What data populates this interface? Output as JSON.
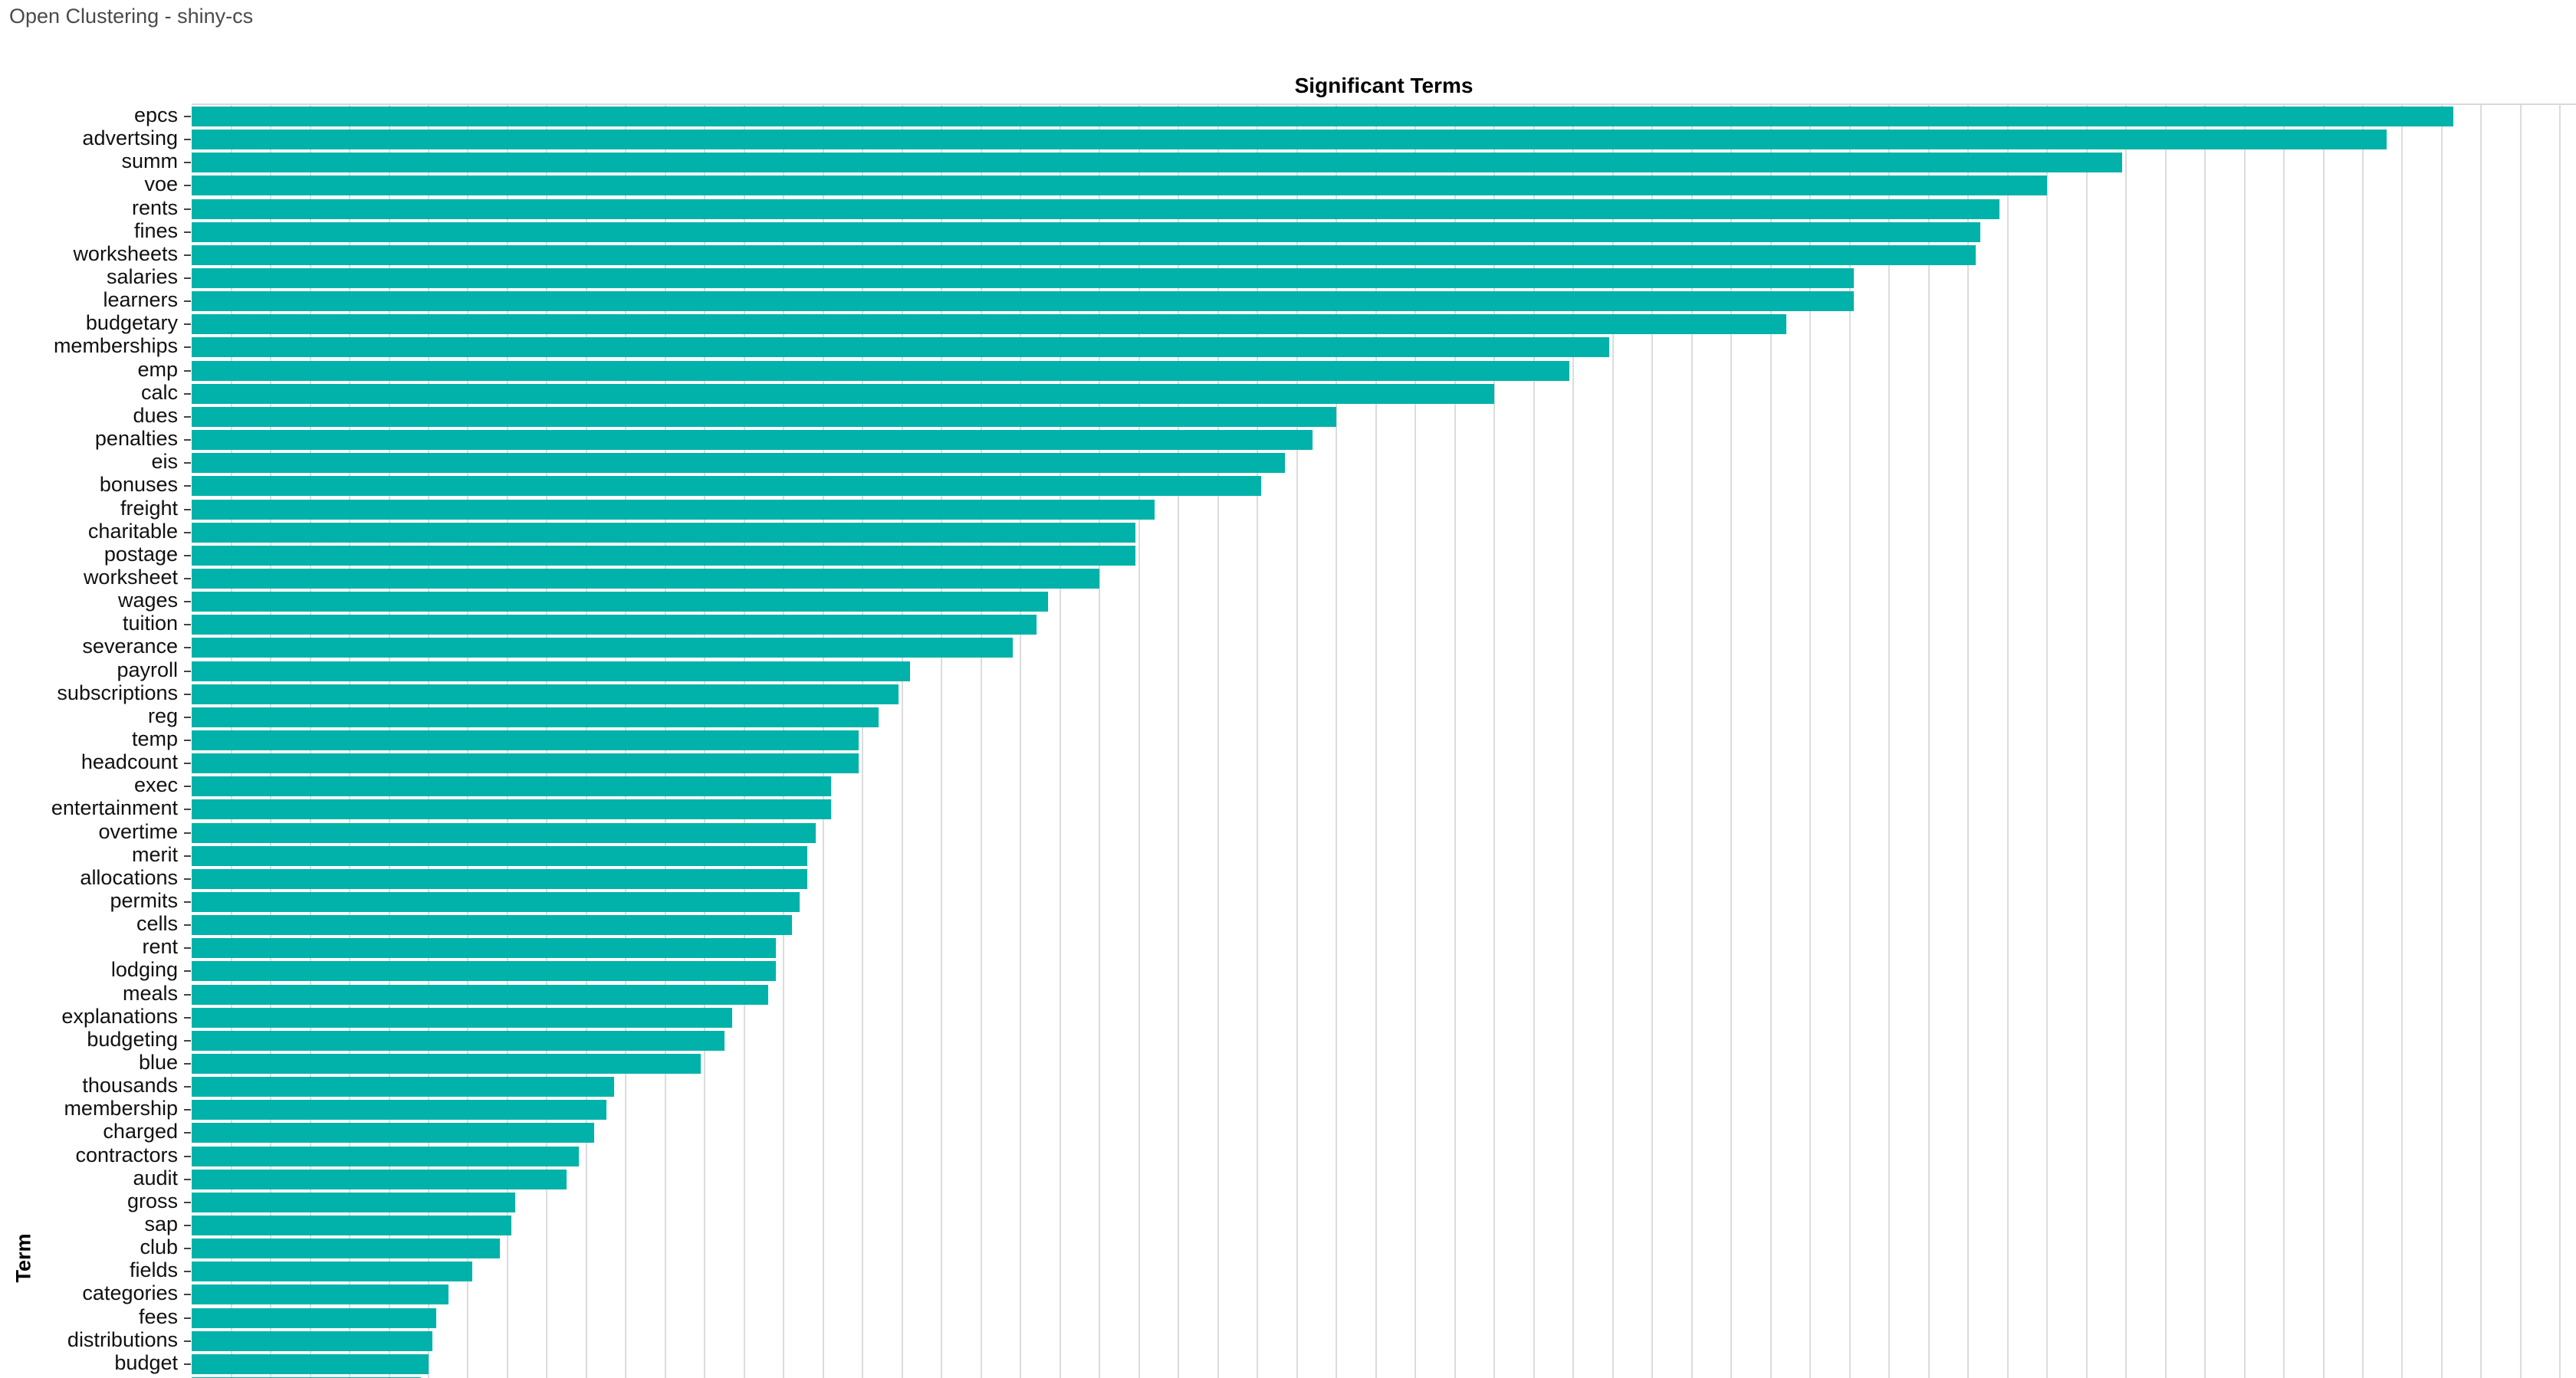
{
  "header": {
    "title": "Open Clustering - shiny-cs"
  },
  "chart_data": {
    "type": "bar",
    "orientation": "horizontal",
    "title": "Significant Terms",
    "xlabel": "",
    "ylabel": "Term",
    "legend": "none",
    "grid": "vertical-only",
    "x_axis_tick_labels_visible": false,
    "xlim": [
      0,
      60.4
    ],
    "bar_color": "#00b2a9",
    "gridline_color": "#dcdcdc",
    "categories": [
      "epcs",
      "advertsing",
      "summ",
      "voe",
      "rents",
      "fines",
      "worksheets",
      "salaries",
      "learners",
      "budgetary",
      "memberships",
      "emp",
      "calc",
      "dues",
      "penalties",
      "eis",
      "bonuses",
      "freight",
      "charitable",
      "postage",
      "worksheet",
      "wages",
      "tuition",
      "severance",
      "payroll",
      "subscriptions",
      "reg",
      "temp",
      "headcount",
      "exec",
      "entertainment",
      "overtime",
      "merit",
      "allocations",
      "permits",
      "cells",
      "rent",
      "lodging",
      "meals",
      "explanations",
      "budgeting",
      "blue",
      "thousands",
      "membership",
      "charged",
      "contractors",
      "audit",
      "gross",
      "sap",
      "club",
      "fields",
      "categories",
      "fees",
      "distributions",
      "budget"
    ],
    "values": [
      57.3,
      55.6,
      48.9,
      47.0,
      45.8,
      45.3,
      45.2,
      42.1,
      42.1,
      40.4,
      35.9,
      34.9,
      33.0,
      29.0,
      28.4,
      27.7,
      27.1,
      24.4,
      23.9,
      23.9,
      23.0,
      21.7,
      21.4,
      20.8,
      18.2,
      17.9,
      17.4,
      16.9,
      16.9,
      16.2,
      16.2,
      15.8,
      15.6,
      15.6,
      15.4,
      15.2,
      14.8,
      14.8,
      14.6,
      13.7,
      13.5,
      12.9,
      10.7,
      10.5,
      10.2,
      9.8,
      9.5,
      8.2,
      8.1,
      7.8,
      7.1,
      6.5,
      6.2,
      6.1,
      6.0
    ],
    "clipped_partial_bar_value": 5.8,
    "note_axis": "x-axis tick labels clipped below bottom edge of view"
  }
}
